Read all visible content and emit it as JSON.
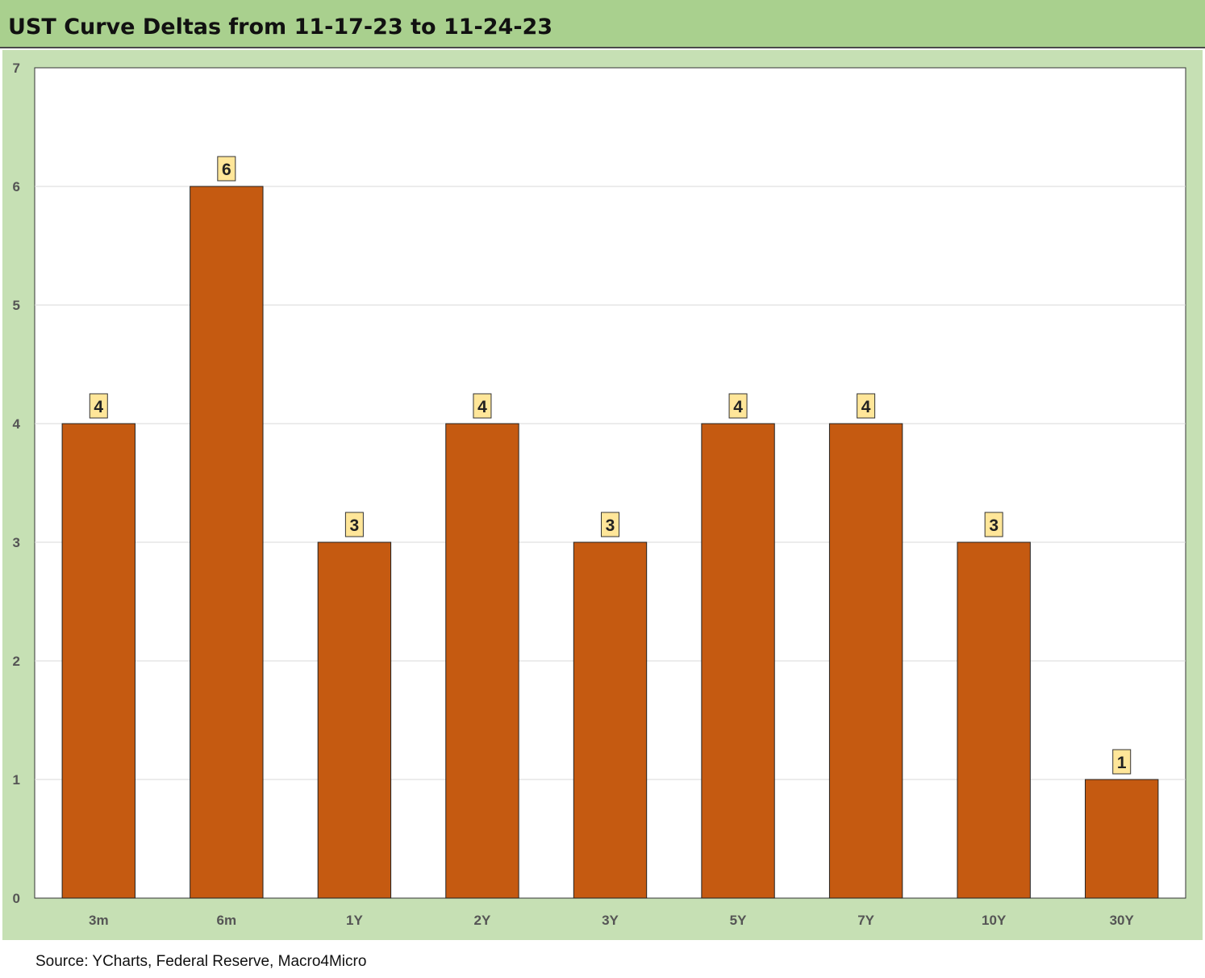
{
  "title": "UST Curve Deltas from 11-17-23 to 11-24-23",
  "source": "Source: YCharts, Federal Reserve, Macro4Micro",
  "colors": {
    "header_bg": "#a9d08e",
    "chart_bg": "#c6e0b4",
    "plot_bg": "#ffffff",
    "bar": "#c55a11",
    "label_bg": "#ffe699"
  },
  "chart_data": {
    "type": "bar",
    "title": "UST Curve Deltas from 11-17-23 to 11-24-23",
    "categories": [
      "3m",
      "6m",
      "1Y",
      "2Y",
      "3Y",
      "5Y",
      "7Y",
      "10Y",
      "30Y"
    ],
    "values": [
      4,
      6,
      3,
      4,
      3,
      4,
      4,
      3,
      1
    ],
    "data_labels": [
      "4",
      "6",
      "3",
      "4",
      "3",
      "4",
      "4",
      "3",
      "1"
    ],
    "yticks": [
      0,
      1,
      2,
      3,
      4,
      5,
      6,
      7
    ],
    "ylim": [
      0,
      7
    ],
    "xlabel": "",
    "ylabel": "",
    "grid": true,
    "legend": "none"
  }
}
